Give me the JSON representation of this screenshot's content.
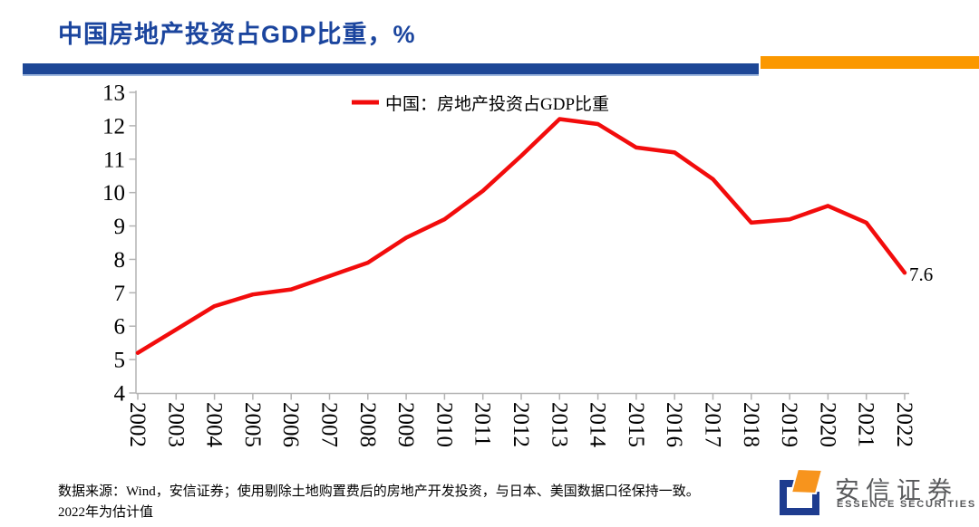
{
  "header": {
    "title": "中国房地产投资占GDP比重，%"
  },
  "decor": {
    "bar_blue": "#1D4796",
    "bar_orange": "#FB9800"
  },
  "chart_data": {
    "type": "line",
    "title": "中国房地产投资占GDP比重，%",
    "x": [
      2002,
      2003,
      2004,
      2005,
      2006,
      2007,
      2008,
      2009,
      2010,
      2011,
      2012,
      2013,
      2014,
      2015,
      2016,
      2017,
      2018,
      2019,
      2020,
      2021,
      2022
    ],
    "series": [
      {
        "name": "中国：房地产投资占GDP比重",
        "color": "#F20C0C",
        "values": [
          5.2,
          5.9,
          6.6,
          6.95,
          7.1,
          7.5,
          7.9,
          8.65,
          9.2,
          10.05,
          11.1,
          12.2,
          12.05,
          11.35,
          11.2,
          10.4,
          9.1,
          9.2,
          9.6,
          9.1,
          7.6
        ]
      }
    ],
    "ylim": [
      4,
      13
    ],
    "ytick_step": 1,
    "xlabel": "",
    "ylabel": "",
    "grid": false,
    "legend_position": "top-center",
    "end_label": "7.6",
    "axis_color": "#B3B3B3",
    "tick_label_color": "#000000"
  },
  "footer": {
    "line1": "数据来源：Wind，安信证券；使用剔除土地购置费后的房地产开发投资，与日本、美国数据口径保持一致。",
    "line2": "2022年为估计值"
  },
  "logo": {
    "cn": "安信证券",
    "en": "ESSENCE SECURITIES",
    "blue": "#1E3C8F",
    "orange": "#F7941D",
    "text_color": "#58595B"
  }
}
